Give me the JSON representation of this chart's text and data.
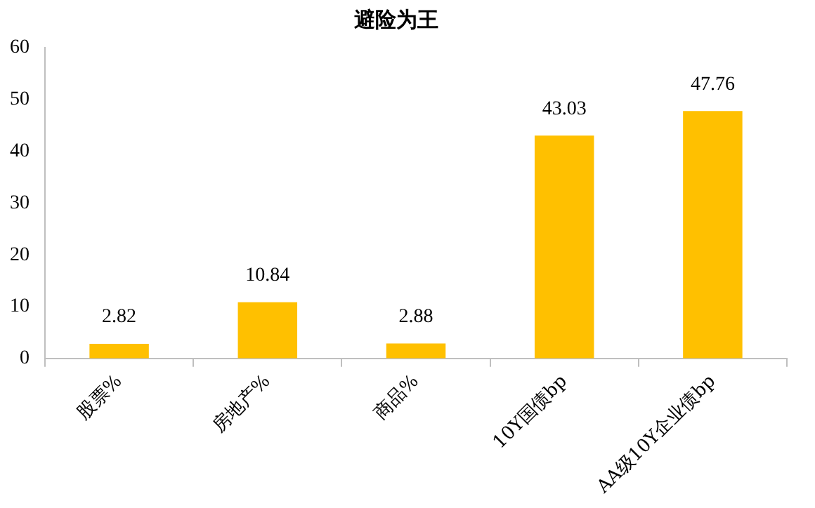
{
  "chart_data": {
    "type": "bar",
    "title": "避险为王",
    "categories": [
      "股票%",
      "房地产%",
      "商品%",
      "10Y国债bp",
      "AA级10Y企业债bp"
    ],
    "values": [
      2.82,
      10.84,
      2.88,
      43.03,
      47.76
    ],
    "color": "#ffc000",
    "ylim": [
      0,
      60
    ],
    "yticks": [
      0,
      10,
      20,
      30,
      40,
      50,
      60
    ],
    "grid": false,
    "data_labels": true
  }
}
